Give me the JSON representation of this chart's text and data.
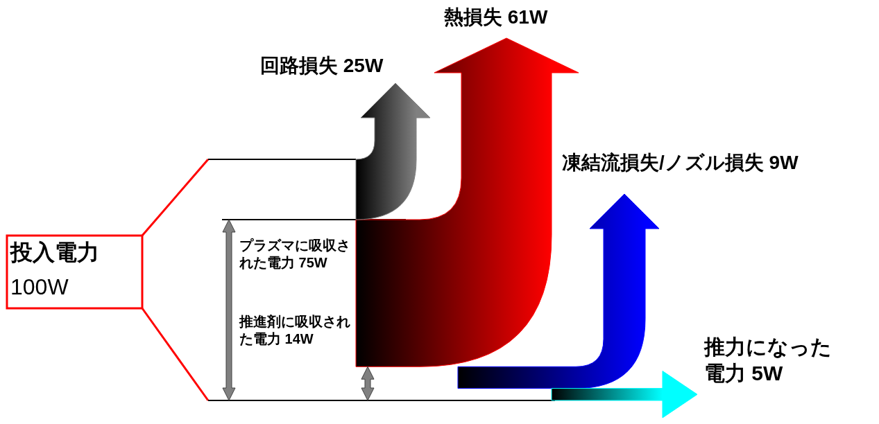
{
  "chart_data": {
    "type": "other",
    "categories": [
      "投入電力",
      "回路損失",
      "プラズマに吸収された電力",
      "熱損失",
      "推進剤に吸収された電力",
      "凍結流損失/ノズル損失",
      "推力になった電力"
    ],
    "values": [
      100,
      25,
      75,
      61,
      14,
      9,
      5
    ],
    "value_labels": [
      "100W",
      "25W",
      "75W",
      "61W",
      "14W",
      "9W",
      "5W"
    ],
    "colors": [
      "#ff0000",
      "#808080",
      "#000000",
      "#ff0000",
      "#000000",
      "#0000ff",
      "#00ffff"
    ]
  }
}
